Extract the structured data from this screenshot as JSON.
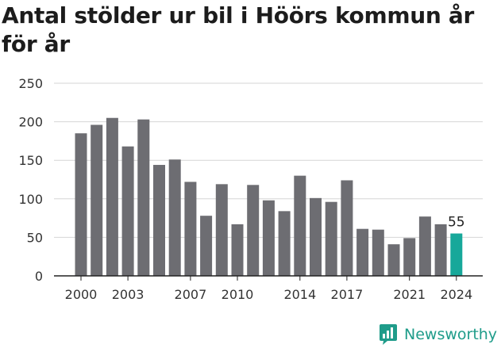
{
  "title": "Antal stölder ur bil i Höörs kommun år för år",
  "brand": {
    "name": "Newsworthy",
    "icon": "newsworthy-logo-icon",
    "color": "#1f9c8a"
  },
  "chart_data": {
    "type": "bar",
    "categories": [
      "2000",
      "2001",
      "2002",
      "2003",
      "2004",
      "2005",
      "2006",
      "2007",
      "2008",
      "2009",
      "2010",
      "2011",
      "2012",
      "2013",
      "2014",
      "2015",
      "2016",
      "2017",
      "2018",
      "2019",
      "2020",
      "2021",
      "2022",
      "2023",
      "2024"
    ],
    "values": [
      185,
      196,
      205,
      168,
      203,
      144,
      151,
      122,
      78,
      119,
      67,
      118,
      98,
      84,
      130,
      101,
      96,
      124,
      61,
      60,
      41,
      49,
      77,
      67,
      55
    ],
    "x_tick_labels": [
      "2000",
      "2003",
      "2007",
      "2010",
      "2014",
      "2017",
      "2021",
      "2024"
    ],
    "y_ticks": [
      0,
      50,
      100,
      150,
      200,
      250
    ],
    "ylim": [
      0,
      250
    ],
    "grid": true,
    "bar_color": "#6d6d72",
    "highlight_color": "#17a89a",
    "highlight_category": "2024",
    "highlight_label": "55",
    "title": "Antal stölder ur bil i Höörs kommun år för år",
    "xlabel": "",
    "ylabel": ""
  }
}
